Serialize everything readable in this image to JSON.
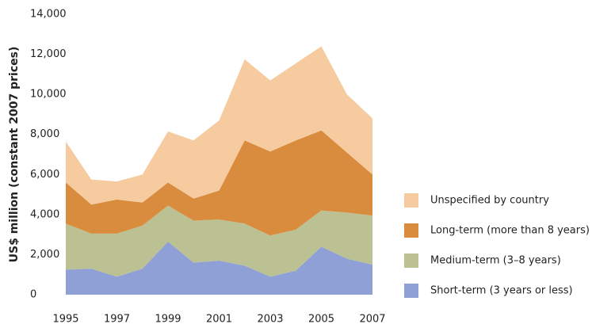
{
  "chart_data": {
    "type": "stacked_area",
    "y_label": "US$ million (constant 2007 prices)",
    "x": [
      1995,
      1996,
      1997,
      1998,
      1999,
      2000,
      2001,
      2002,
      2003,
      2004,
      2005,
      2006,
      2007
    ],
    "xlim": [
      1995,
      2007
    ],
    "xticks": [
      1995,
      1997,
      1999,
      2001,
      2003,
      2005,
      2007
    ],
    "ylim": [
      0,
      14000
    ],
    "yticks": [
      0,
      {
        "value": 2000,
        "label": "2,000"
      },
      {
        "value": 4000,
        "label": "4,000"
      },
      {
        "value": 6000,
        "label": "6,000"
      },
      {
        "value": 8000,
        "label": "8,000"
      },
      {
        "value": 10000,
        "label": "10,000"
      },
      {
        "value": 12000,
        "label": "12,000"
      },
      {
        "value": 14000,
        "label": "14,000"
      }
    ],
    "grid": false,
    "series": [
      {
        "name": "Short-term (3 years or less)",
        "color": "#8fa0d6",
        "values": [
          1250,
          1300,
          900,
          1300,
          2650,
          1600,
          1700,
          1450,
          900,
          1200,
          2400,
          1800,
          1500
        ]
      },
      {
        "name": "Medium-term (3–8 years)",
        "color": "#bcc193",
        "values": [
          2300,
          1750,
          2150,
          2150,
          1800,
          2100,
          2050,
          2100,
          2050,
          2050,
          1800,
          2300,
          2450
        ]
      },
      {
        "name": "Long-term (more than 8 years)",
        "color": "#d98c3e",
        "values": [
          2050,
          1450,
          1700,
          1150,
          1150,
          1100,
          1450,
          4150,
          4200,
          4450,
          4000,
          3000,
          2050
        ]
      },
      {
        "name": "Unspecified by country",
        "color": "#f7cba0",
        "values": [
          2050,
          1250,
          900,
          1400,
          2550,
          2900,
          3500,
          4050,
          3550,
          3850,
          4200,
          2900,
          2800
        ]
      }
    ]
  }
}
